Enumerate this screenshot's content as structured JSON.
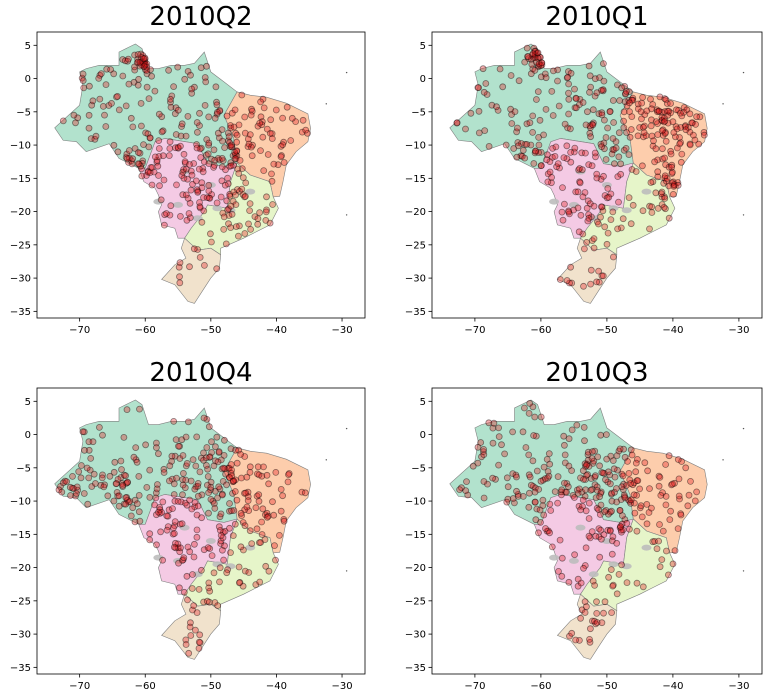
{
  "figure": {
    "panels": [
      {
        "title": "2010Q2",
        "seed": 11,
        "clusters": [
          [
            -60,
            3,
            0.8,
            28
          ],
          [
            -48,
            -10,
            3,
            55
          ],
          [
            -54,
            -13,
            3,
            35
          ],
          [
            -62,
            -14,
            2,
            25
          ],
          [
            -45,
            -18,
            3,
            25
          ],
          [
            -42,
            -9,
            2,
            15
          ]
        ]
      },
      {
        "title": "2010Q1",
        "seed": 23,
        "clusters": [
          [
            -60,
            3,
            1.0,
            30
          ],
          [
            -45,
            -3,
            4,
            55
          ],
          [
            -38,
            -8,
            2,
            35
          ],
          [
            -40,
            -17,
            1.5,
            25
          ],
          [
            -62,
            -12,
            2,
            25
          ],
          [
            -52,
            -20,
            2,
            20
          ],
          [
            -50,
            -8,
            4,
            30
          ]
        ]
      },
      {
        "title": "2010Q4",
        "seed": 37,
        "clusters": [
          [
            -48,
            -7,
            4,
            60
          ],
          [
            -50,
            -3,
            3,
            25
          ],
          [
            -65,
            -9,
            2,
            25
          ],
          [
            -72,
            -9,
            1.5,
            12
          ],
          [
            -55,
            -12,
            3,
            25
          ],
          [
            -45,
            -13,
            3,
            20
          ]
        ]
      },
      {
        "title": "2010Q3",
        "seed": 53,
        "clusters": [
          [
            -48,
            -8,
            3,
            60
          ],
          [
            -52,
            -5,
            2,
            25
          ],
          [
            -62,
            -9,
            2,
            20
          ],
          [
            -56,
            -9,
            2,
            15
          ],
          [
            -50,
            -12,
            2,
            15
          ]
        ]
      }
    ],
    "x_ticks": [
      "−70",
      "−60",
      "−50",
      "−40",
      "−30"
    ],
    "y_ticks": [
      "5",
      "0",
      "−5",
      "−10",
      "−15",
      "−20",
      "−25",
      "−30",
      "−35"
    ],
    "region_colors": {
      "north": "#b2e2cd",
      "northeast": "#fdcdac",
      "central_west": "#f4cae4",
      "southeast": "#e6f5c9",
      "south": "#f1e2cc",
      "lakes": "#bdbdbd"
    },
    "point_color": "#e31a1c",
    "point_edge": "#000000"
  }
}
